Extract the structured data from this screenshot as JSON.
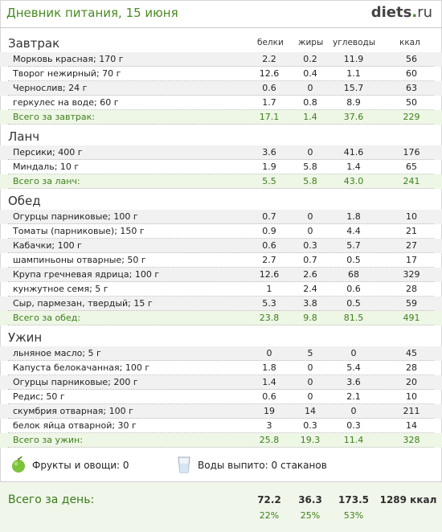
{
  "header": {
    "title": "Дневник питания, 15 июня",
    "logo_main": "diets",
    "logo_dot": ".",
    "logo_tld": "ru"
  },
  "columns": {
    "protein": "белки",
    "fat": "жиры",
    "carbs": "углеводы",
    "kcal": "ккал"
  },
  "sections": [
    {
      "title": "Завтрак",
      "items": [
        {
          "name": "Морковь красная; 170 г",
          "b": "2.2",
          "z": "0.2",
          "u": "11.9",
          "k": "56"
        },
        {
          "name": "Творог нежирный; 70 г",
          "b": "12.6",
          "z": "0.4",
          "u": "1.1",
          "k": "60"
        },
        {
          "name": "Чернослив; 24 г",
          "b": "0.6",
          "z": "0",
          "u": "15.7",
          "k": "63"
        },
        {
          "name": "геркулес на воде; 60 г",
          "b": "1.7",
          "z": "0.8",
          "u": "8.9",
          "k": "50"
        }
      ],
      "total": {
        "name": "Всего за завтрак:",
        "b": "17.1",
        "z": "1.4",
        "u": "37.6",
        "k": "229"
      }
    },
    {
      "title": "Ланч",
      "items": [
        {
          "name": "Персики; 400 г",
          "b": "3.6",
          "z": "0",
          "u": "41.6",
          "k": "176"
        },
        {
          "name": "Миндаль; 10 г",
          "b": "1.9",
          "z": "5.8",
          "u": "1.4",
          "k": "65"
        }
      ],
      "total": {
        "name": "Всего за ланч:",
        "b": "5.5",
        "z": "5.8",
        "u": "43.0",
        "k": "241"
      }
    },
    {
      "title": "Обед",
      "items": [
        {
          "name": "Огурцы парниковые; 100 г",
          "b": "0.7",
          "z": "0",
          "u": "1.8",
          "k": "10"
        },
        {
          "name": "Томаты (парниковые); 150 г",
          "b": "0.9",
          "z": "0",
          "u": "4.4",
          "k": "21"
        },
        {
          "name": "Кабачки; 100 г",
          "b": "0.6",
          "z": "0.3",
          "u": "5.7",
          "k": "27"
        },
        {
          "name": "шампиньоны отварные; 50 г",
          "b": "2.7",
          "z": "0.7",
          "u": "0.5",
          "k": "17"
        },
        {
          "name": "Крупа гречневая ядрица; 100 г",
          "b": "12.6",
          "z": "2.6",
          "u": "68",
          "k": "329"
        },
        {
          "name": "кунжутное семя; 5 г",
          "b": "1",
          "z": "2.4",
          "u": "0.6",
          "k": "28"
        },
        {
          "name": "Сыр, пармезан, твердый; 15 г",
          "b": "5.3",
          "z": "3.8",
          "u": "0.5",
          "k": "59"
        }
      ],
      "total": {
        "name": "Всего за обед:",
        "b": "23.8",
        "z": "9.8",
        "u": "81.5",
        "k": "491"
      }
    },
    {
      "title": "Ужин",
      "items": [
        {
          "name": "льняное масло; 5 г",
          "b": "0",
          "z": "5",
          "u": "0",
          "k": "45"
        },
        {
          "name": "Капуста белокачанная; 100 г",
          "b": "1.8",
          "z": "0",
          "u": "5.4",
          "k": "28"
        },
        {
          "name": "Огурцы парниковые; 200 г",
          "b": "1.4",
          "z": "0",
          "u": "3.6",
          "k": "20"
        },
        {
          "name": "Редис; 50 г",
          "b": "0.6",
          "z": "0",
          "u": "2.1",
          "k": "10"
        },
        {
          "name": "скумбрия отварная; 100 г",
          "b": "19",
          "z": "14",
          "u": "0",
          "k": "211"
        },
        {
          "name": "белок яйца отварной; 30 г",
          "b": "3",
          "z": "0.3",
          "u": "0.3",
          "k": "14"
        }
      ],
      "total": {
        "name": "Всего за ужин:",
        "b": "25.8",
        "z": "19.3",
        "u": "11.4",
        "k": "328"
      }
    }
  ],
  "extras": {
    "fruits": "Фрукты и овощи: 0",
    "water": "Воды выпито: 0 стаканов"
  },
  "day_total": {
    "label": "Всего за день:",
    "protein": "72.2",
    "fat": "36.3",
    "carbs": "173.5",
    "kcal": "1289 ккал",
    "protein_pct": "22%",
    "fat_pct": "25%",
    "carbs_pct": "53%"
  }
}
